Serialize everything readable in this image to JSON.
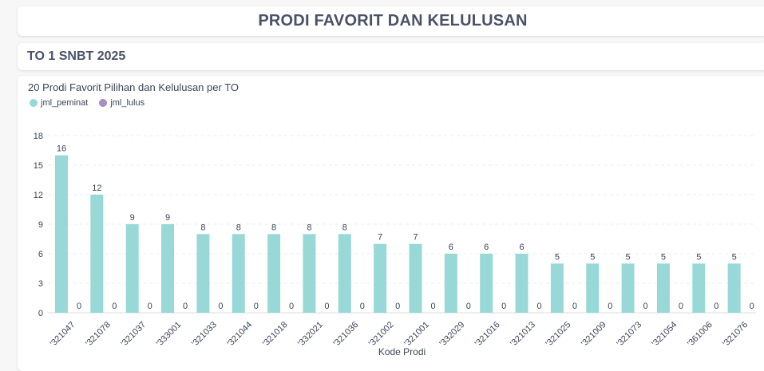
{
  "header": {
    "title": "PRODI FAVORIT DAN KELULUSAN"
  },
  "section": {
    "title": "TO 1 SNBT 2025"
  },
  "colors": {
    "peminat": "#98d9d8",
    "lulus": "#a98bc6"
  },
  "chart_data": {
    "type": "bar",
    "title": "20 Prodi Favorit Pilihan dan Kelulusan per TO",
    "xlabel": "Kode Prodi",
    "ylabel": "",
    "ylim": [
      0,
      18
    ],
    "yticks": [
      0,
      3,
      6,
      9,
      12,
      15,
      18
    ],
    "legend": "top-left",
    "grid": true,
    "categories": [
      "'321047",
      "'321078",
      "'321037",
      "'333001",
      "'321033",
      "'321044",
      "'321018",
      "'332021",
      "'321036",
      "'321002",
      "'321001",
      "'332029",
      "'321016",
      "'321013",
      "'321025",
      "'321009",
      "'321073",
      "'321054",
      "'361006",
      "'321076"
    ],
    "series": [
      {
        "name": "jml_peminat",
        "values": [
          16,
          12,
          9,
          9,
          8,
          8,
          8,
          8,
          8,
          7,
          7,
          6,
          6,
          6,
          5,
          5,
          5,
          5,
          5,
          5
        ]
      },
      {
        "name": "jml_lulus",
        "values": [
          0,
          0,
          0,
          0,
          0,
          0,
          0,
          0,
          0,
          0,
          0,
          0,
          0,
          0,
          0,
          0,
          0,
          0,
          0,
          0
        ]
      }
    ]
  }
}
